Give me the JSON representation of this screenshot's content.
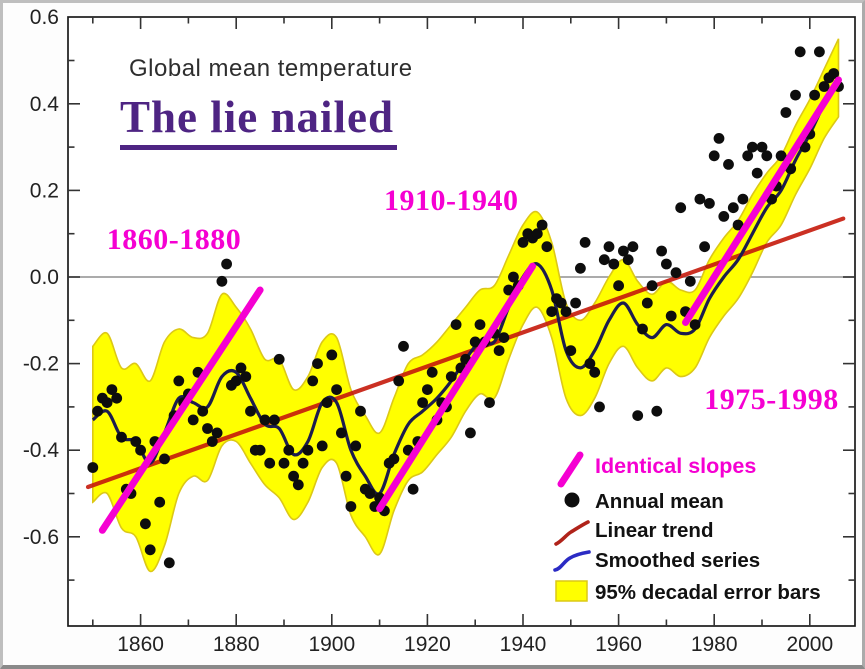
{
  "header": {
    "title": "Global mean temperature",
    "headline": "The lie nailed"
  },
  "colors": {
    "magenta": "#f500d2",
    "purple": "#4e2483",
    "trend_red": "#c61a0c",
    "smoothed_line": "#1c1c4e",
    "legend_blue": "#2b2bc4",
    "band_yellow": "#ffff00",
    "band_edge": "#dcc816",
    "dot_black": "#0d0d0d",
    "axis_text": "#222222",
    "zero_line": "#8f8f8f",
    "plot_border": "#1a1a1a"
  },
  "chart_data": {
    "type": "line",
    "title": "Global mean temperature",
    "annotation_headline": "The lie nailed",
    "xlim": [
      1845.5,
      2009.5
    ],
    "ylim": [
      -0.81,
      0.6
    ],
    "x_tick_labels": [
      1860,
      1880,
      1900,
      1920,
      1940,
      1960,
      1980,
      2000
    ],
    "x_minor_tick_step": 10,
    "y_tick_labels": [
      0.6,
      0.4,
      0.2,
      0.0,
      -0.2,
      -0.4,
      -0.6
    ],
    "y_minor_tick_step": 0.1,
    "grid": "zero-line-only",
    "legend_position": "lower-right",
    "annual_mean": {
      "start_year": 1850,
      "values": [
        -0.44,
        -0.31,
        -0.28,
        -0.29,
        -0.26,
        -0.28,
        -0.37,
        -0.49,
        -0.5,
        -0.38,
        -0.4,
        -0.57,
        -0.63,
        -0.38,
        -0.52,
        -0.42,
        -0.66,
        -0.32,
        -0.24,
        -0.29,
        -0.27,
        -0.33,
        -0.22,
        -0.31,
        -0.35,
        -0.38,
        -0.36,
        -0.01,
        0.03,
        -0.25,
        -0.24,
        -0.21,
        -0.23,
        -0.31,
        -0.4,
        -0.4,
        -0.33,
        -0.43,
        -0.33,
        -0.19,
        -0.43,
        -0.4,
        -0.46,
        -0.48,
        -0.43,
        -0.4,
        -0.24,
        -0.2,
        -0.39,
        -0.29,
        -0.18,
        -0.26,
        -0.36,
        -0.46,
        -0.53,
        -0.39,
        -0.31,
        -0.49,
        -0.5,
        -0.53,
        -0.51,
        -0.54,
        -0.43,
        -0.42,
        -0.24,
        -0.16,
        -0.4,
        -0.49,
        -0.38,
        -0.29,
        -0.26,
        -0.22,
        -0.33,
        -0.29,
        -0.3,
        -0.23,
        -0.11,
        -0.21,
        -0.19,
        -0.36,
        -0.15,
        -0.11,
        -0.15,
        -0.29,
        -0.13,
        -0.17,
        -0.14,
        -0.03,
        0.0,
        -0.02,
        0.08,
        0.1,
        0.09,
        0.1,
        0.12,
        0.07,
        -0.08,
        -0.05,
        -0.06,
        -0.08,
        -0.17,
        -0.06,
        0.02,
        0.08,
        -0.2,
        -0.22,
        -0.3,
        0.04,
        0.07,
        0.03,
        -0.02,
        0.06,
        0.04,
        0.07,
        -0.32,
        -0.12,
        -0.06,
        -0.02,
        -0.31,
        0.06,
        0.03,
        -0.09,
        0.01,
        0.16,
        -0.08,
        -0.01,
        -0.11,
        0.18,
        0.07,
        0.17,
        0.28,
        0.32,
        0.14,
        0.26,
        0.16,
        0.12,
        0.18,
        0.28,
        0.3,
        0.24,
        0.3,
        0.28,
        0.18,
        0.21,
        0.28,
        0.38,
        0.25,
        0.42,
        0.52,
        0.3,
        0.33,
        0.42,
        0.52,
        0.44,
        0.46,
        0.47,
        0.44
      ]
    },
    "smoothed": {
      "years": [
        1850,
        1853,
        1856,
        1859,
        1862,
        1865,
        1868,
        1871,
        1874,
        1877,
        1880,
        1883,
        1886,
        1889,
        1892,
        1895,
        1898,
        1901,
        1904,
        1907,
        1910,
        1913,
        1916,
        1919,
        1922,
        1925,
        1928,
        1931,
        1934,
        1937,
        1940,
        1943,
        1946,
        1949,
        1952,
        1955,
        1958,
        1961,
        1964,
        1967,
        1970,
        1973,
        1976,
        1979,
        1982,
        1985,
        1988,
        1991,
        1994,
        1997,
        2000,
        2003,
        2006
      ],
      "values": [
        -0.33,
        -0.31,
        -0.37,
        -0.38,
        -0.43,
        -0.36,
        -0.28,
        -0.29,
        -0.3,
        -0.23,
        -0.22,
        -0.28,
        -0.34,
        -0.35,
        -0.41,
        -0.38,
        -0.29,
        -0.29,
        -0.4,
        -0.46,
        -0.5,
        -0.41,
        -0.34,
        -0.31,
        -0.28,
        -0.24,
        -0.19,
        -0.15,
        -0.15,
        -0.07,
        0.0,
        0.03,
        -0.03,
        -0.17,
        -0.21,
        -0.17,
        -0.1,
        -0.06,
        -0.11,
        -0.14,
        -0.11,
        -0.13,
        -0.12,
        -0.05,
        0.0,
        0.04,
        0.1,
        0.16,
        0.2,
        0.27,
        0.33,
        0.4,
        0.46
      ]
    },
    "error_band": {
      "label": "95% decadal error bars",
      "years": [
        1850,
        1853,
        1856,
        1859,
        1862,
        1865,
        1868,
        1871,
        1874,
        1877,
        1880,
        1883,
        1886,
        1889,
        1892,
        1895,
        1898,
        1901,
        1904,
        1907,
        1910,
        1913,
        1916,
        1919,
        1922,
        1925,
        1928,
        1931,
        1934,
        1937,
        1940,
        1943,
        1946,
        1949,
        1952,
        1955,
        1958,
        1961,
        1964,
        1967,
        1970,
        1973,
        1976,
        1979,
        1982,
        1985,
        1988,
        1991,
        1994,
        1997,
        2000,
        2003,
        2006
      ],
      "upper": [
        -0.16,
        -0.13,
        -0.21,
        -0.2,
        -0.24,
        -0.15,
        -0.12,
        -0.14,
        -0.13,
        -0.04,
        -0.07,
        -0.12,
        -0.19,
        -0.19,
        -0.26,
        -0.23,
        -0.15,
        -0.14,
        -0.26,
        -0.32,
        -0.36,
        -0.28,
        -0.2,
        -0.18,
        -0.15,
        -0.11,
        -0.07,
        -0.03,
        -0.02,
        0.05,
        0.12,
        0.15,
        0.08,
        -0.06,
        -0.1,
        -0.06,
        0.0,
        0.04,
        -0.01,
        -0.04,
        -0.01,
        -0.03,
        -0.03,
        0.04,
        0.09,
        0.13,
        0.19,
        0.24,
        0.28,
        0.35,
        0.41,
        0.48,
        0.55
      ],
      "lower": [
        -0.52,
        -0.5,
        -0.58,
        -0.6,
        -0.68,
        -0.62,
        -0.5,
        -0.46,
        -0.47,
        -0.39,
        -0.38,
        -0.43,
        -0.48,
        -0.51,
        -0.56,
        -0.52,
        -0.44,
        -0.43,
        -0.55,
        -0.6,
        -0.64,
        -0.54,
        -0.47,
        -0.45,
        -0.41,
        -0.37,
        -0.31,
        -0.27,
        -0.28,
        -0.19,
        -0.11,
        -0.07,
        -0.14,
        -0.28,
        -0.32,
        -0.28,
        -0.2,
        -0.16,
        -0.21,
        -0.24,
        -0.21,
        -0.23,
        -0.21,
        -0.14,
        -0.09,
        -0.05,
        0.01,
        0.08,
        0.12,
        0.19,
        0.25,
        0.32,
        0.37
      ]
    },
    "linear_trend": {
      "label": "Linear trend",
      "x1": 1849,
      "y1": -0.485,
      "x2": 2007,
      "y2": 0.135
    },
    "slope_lines": [
      {
        "period": "1860-1880",
        "x1": 1852,
        "y1": -0.585,
        "x2": 1885,
        "y2": -0.03
      },
      {
        "period": "1910-1940",
        "x1": 1910,
        "y1": -0.535,
        "x2": 1942,
        "y2": 0.025
      },
      {
        "period": "1975-1998",
        "x1": 1974,
        "y1": -0.105,
        "x2": 2006,
        "y2": 0.455
      }
    ],
    "annotations": [
      {
        "text": "1860-1880",
        "x": 1867,
        "y": 0.09
      },
      {
        "text": "1910-1940",
        "x": 1925,
        "y": 0.18
      },
      {
        "text": "1975-1998",
        "x": 1992,
        "y": -0.28
      }
    ],
    "legend": [
      {
        "icon": "slope-line",
        "label": "Identical slopes",
        "label_color": "#f500d2"
      },
      {
        "icon": "dot",
        "label": "Annual mean",
        "label_color": "#111111"
      },
      {
        "icon": "trend-line",
        "label": "Linear trend",
        "label_color": "#111111"
      },
      {
        "icon": "smoothed-line",
        "label": "Smoothed series",
        "label_color": "#111111"
      },
      {
        "icon": "error-box",
        "label": "95% decadal error bars",
        "label_color": "#111111"
      }
    ]
  }
}
